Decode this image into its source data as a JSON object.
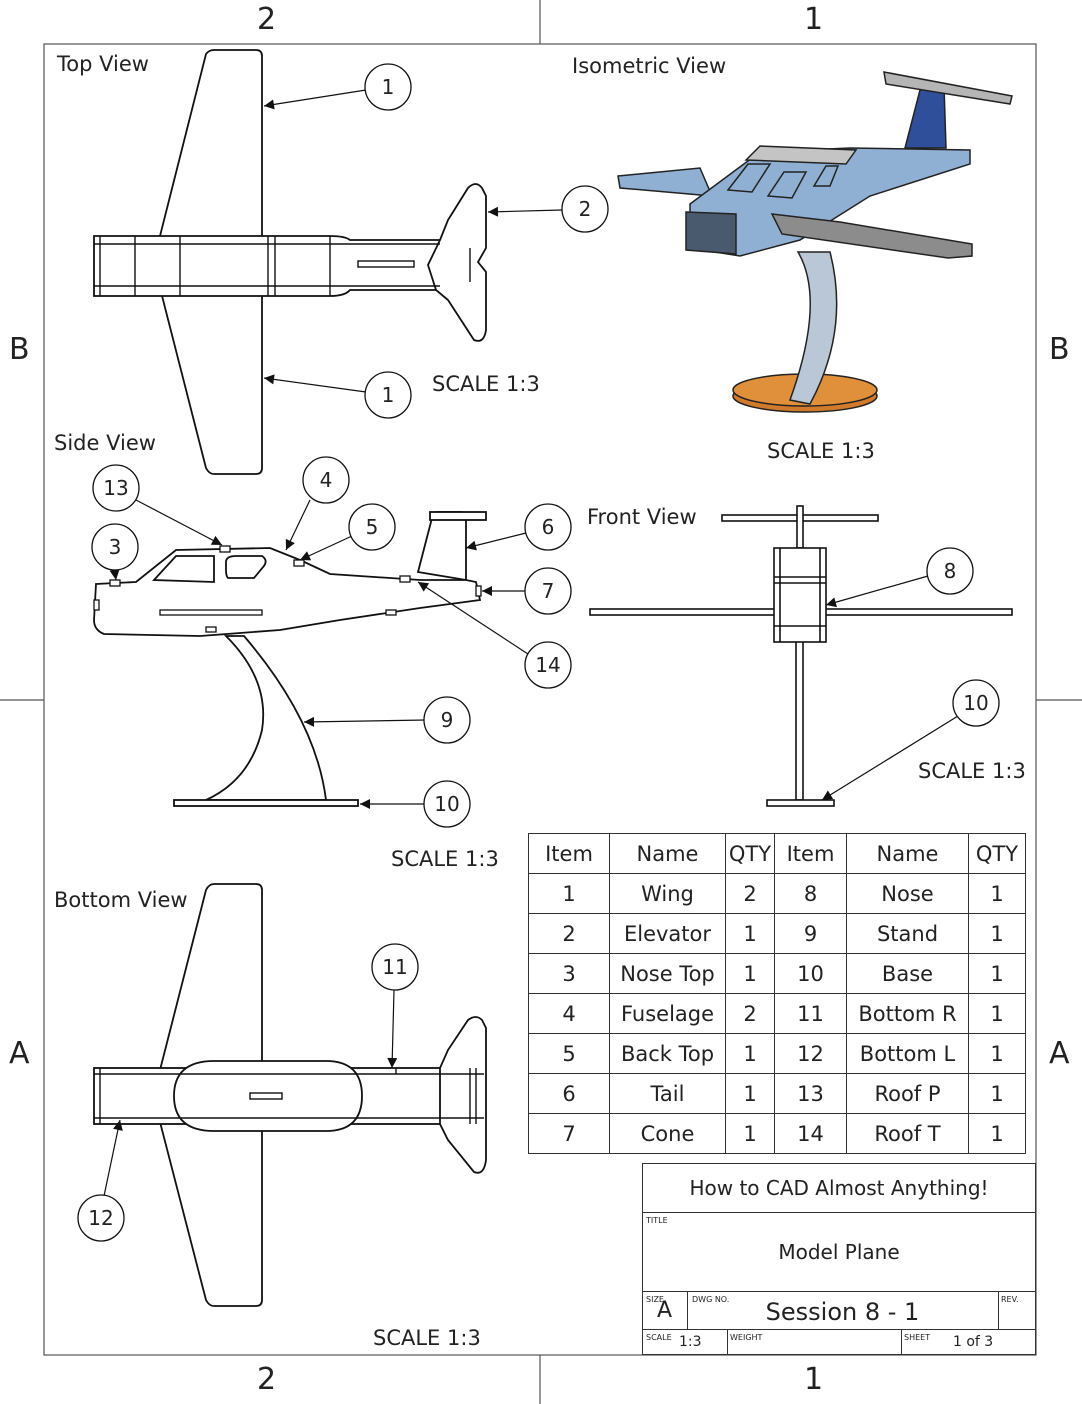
{
  "zones": {
    "col_left": "2",
    "col_right": "1",
    "row_upper": "B",
    "row_lower": "A"
  },
  "views": {
    "top": {
      "label": "Top View",
      "scale": "SCALE 1:3"
    },
    "isometric": {
      "label": "Isometric View",
      "scale": "SCALE 1:3"
    },
    "side": {
      "label": "Side View",
      "scale": "SCALE 1:3"
    },
    "front": {
      "label": "Front View",
      "scale": "SCALE 1:3"
    },
    "bottom": {
      "label": "Bottom View",
      "scale": "SCALE 1:3"
    }
  },
  "balloons": {
    "top_wing_upper": "1",
    "top_elevator": "2",
    "top_wing_lower": "1",
    "side_roof_p": "13",
    "side_nose_top": "3",
    "side_fuselage": "4",
    "side_back_top": "5",
    "side_tail": "6",
    "side_cone": "7",
    "side_roof_t": "14",
    "side_stand": "9",
    "side_base": "10",
    "front_nose": "8",
    "front_base": "10",
    "bottom_bottom_r": "11",
    "bottom_bottom_l": "12"
  },
  "bom": {
    "headers": [
      "Item",
      "Name",
      "QTY",
      "Item",
      "Name",
      "QTY"
    ],
    "rows": [
      [
        "1",
        "Wing",
        "2",
        "8",
        "Nose",
        "1"
      ],
      [
        "2",
        "Elevator",
        "1",
        "9",
        "Stand",
        "1"
      ],
      [
        "3",
        "Nose Top",
        "1",
        "10",
        "Base",
        "1"
      ],
      [
        "4",
        "Fuselage",
        "2",
        "11",
        "Bottom R",
        "1"
      ],
      [
        "5",
        "Back Top",
        "1",
        "12",
        "Bottom L",
        "1"
      ],
      [
        "6",
        "Tail",
        "1",
        "13",
        "Roof P",
        "1"
      ],
      [
        "7",
        "Cone",
        "1",
        "14",
        "Roof T",
        "1"
      ]
    ]
  },
  "title_block": {
    "company": "How to CAD Almost Anything!",
    "title_caption": "TITLE",
    "title": "Model Plane",
    "size_caption": "SIZE",
    "size": "A",
    "dwg_caption": "DWG NO.",
    "dwg_no": "Session 8 - 1",
    "rev_caption": "REV.",
    "scale_caption": "SCALE",
    "scale": "1:3",
    "weight_caption": "WEIGHT",
    "sheet_caption": "SHEET",
    "sheet": "1 of 3"
  },
  "colors": {
    "fuselage_blue": "#8fb0d3",
    "tail_blue": "#2f4f9a",
    "wing_gray": "#8c8c8c",
    "stand_gray": "#b9c7d6",
    "base_orange": "#d07a2c",
    "line": "#111111"
  }
}
